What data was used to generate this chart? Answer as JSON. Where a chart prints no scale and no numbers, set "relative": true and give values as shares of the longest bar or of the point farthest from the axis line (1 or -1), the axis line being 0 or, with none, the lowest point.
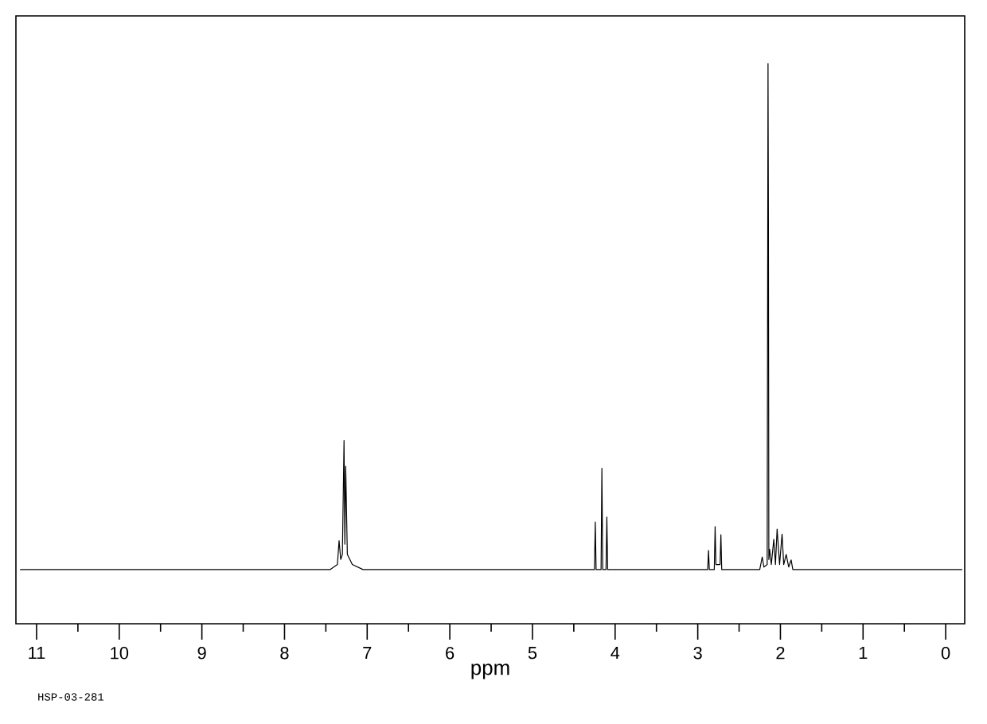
{
  "chart_data": {
    "type": "line",
    "relative": true,
    "xlabel": "ppm",
    "color": "#000000",
    "annotations": [
      "HSP-03-281"
    ],
    "xlim": [
      11.25,
      -0.23
    ],
    "xticks": [
      11,
      10,
      9,
      8,
      7,
      6,
      5,
      4,
      3,
      2,
      1,
      0
    ],
    "x": [
      11.2,
      7.45,
      7.36,
      7.34,
      7.32,
      7.3,
      7.28,
      7.27,
      7.26,
      7.24,
      7.18,
      7.05,
      4.3,
      4.25,
      4.24,
      4.23,
      4.17,
      4.16,
      4.15,
      4.11,
      4.1,
      4.09,
      2.95,
      2.88,
      2.87,
      2.86,
      2.8,
      2.79,
      2.78,
      2.73,
      2.72,
      2.71,
      2.25,
      2.22,
      2.2,
      2.16,
      2.15,
      2.145,
      2.14,
      2.13,
      2.11,
      2.08,
      2.06,
      2.04,
      2.01,
      1.98,
      1.96,
      1.93,
      1.9,
      1.87,
      1.85,
      1.8,
      -0.2
    ],
    "values": [
      0,
      0,
      0.01,
      0.057,
      0.02,
      0.03,
      0.255,
      0.05,
      0.204,
      0.03,
      0.01,
      0,
      0,
      0,
      0.094,
      0,
      0,
      0.2,
      0,
      0,
      0.104,
      0,
      0,
      0,
      0.038,
      0,
      0,
      0.085,
      0.01,
      0.01,
      0.069,
      0,
      0,
      0.025,
      0.005,
      0.01,
      1.0,
      0.685,
      0.02,
      0.04,
      0.01,
      0.06,
      0.01,
      0.08,
      0.01,
      0.07,
      0.01,
      0.03,
      0.005,
      0.019,
      0,
      0,
      0
    ]
  }
}
